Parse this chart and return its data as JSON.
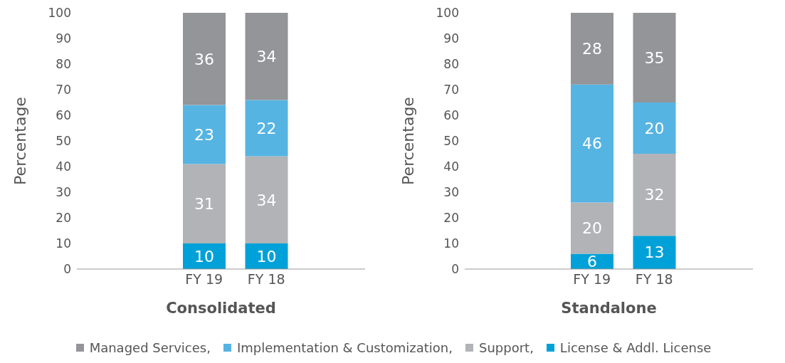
{
  "chart_data": [
    {
      "type": "bar",
      "stacked": true,
      "xlabel": "Consolidated",
      "ylabel": "Percentage",
      "categories": [
        "FY 19",
        "FY 18"
      ],
      "ylim": [
        0,
        100
      ],
      "yticks": [
        0,
        10,
        20,
        30,
        40,
        50,
        60,
        70,
        80,
        90,
        100
      ],
      "data_labels": true,
      "legend": "bottom",
      "grid": false,
      "series": [
        {
          "name": "License & Addl. License",
          "color": "#00a1d8",
          "values": [
            10,
            10
          ]
        },
        {
          "name": "Support,",
          "color": "#b1b3b6",
          "values": [
            31,
            34
          ]
        },
        {
          "name": "Implementation & Customization,",
          "color": "#56b4e3",
          "values": [
            23,
            22
          ]
        },
        {
          "name": "Managed Services,",
          "color": "#939598",
          "values": [
            36,
            34
          ]
        }
      ]
    },
    {
      "type": "bar",
      "stacked": true,
      "xlabel": "Standalone",
      "ylabel": "Percentage",
      "categories": [
        "FY 19",
        "FY 18"
      ],
      "ylim": [
        0,
        100
      ],
      "yticks": [
        0,
        10,
        20,
        30,
        40,
        50,
        60,
        70,
        80,
        90,
        100
      ],
      "data_labels": true,
      "grid": false,
      "series": [
        {
          "color": "#00a1d8",
          "values": [
            6,
            13
          ]
        },
        {
          "color": "#b1b3b6",
          "values": [
            20,
            32
          ]
        },
        {
          "color": "#56b4e3",
          "values": [
            46,
            20
          ]
        },
        {
          "color": "#939598",
          "values": [
            28,
            35
          ]
        }
      ]
    }
  ]
}
